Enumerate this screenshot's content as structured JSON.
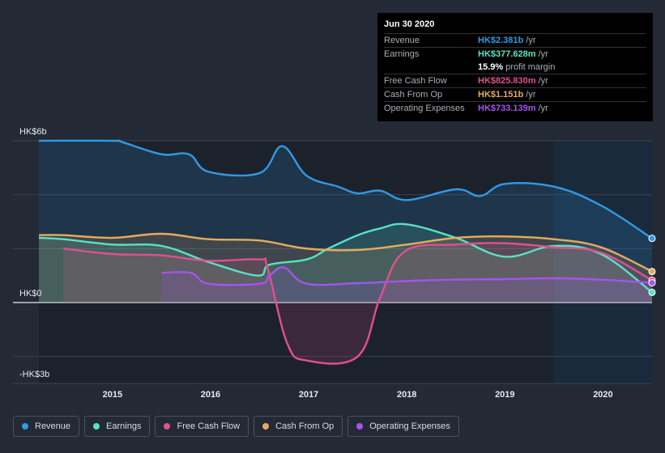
{
  "tooltip": {
    "date": "Jun 30 2020",
    "rows": [
      {
        "label": "Revenue",
        "value": "HK$2.381b",
        "unit": "/yr",
        "color": "#2f9ae8"
      },
      {
        "label": "Earnings",
        "value": "HK$377.628m",
        "unit": "/yr",
        "color": "#57e3c4"
      },
      {
        "label": "",
        "value": "15.9%",
        "unit": "profit margin",
        "color": "#ffffff"
      },
      {
        "label": "Free Cash Flow",
        "value": "HK$825.830m",
        "unit": "/yr",
        "color": "#e0508f"
      },
      {
        "label": "Cash From Op",
        "value": "HK$1.151b",
        "unit": "/yr",
        "color": "#e8ab5c"
      },
      {
        "label": "Operating Expenses",
        "value": "HK$733.139m",
        "unit": "/yr",
        "color": "#a454f0"
      }
    ]
  },
  "chart_data": {
    "type": "area",
    "ylim": [
      -3,
      6
    ],
    "xlim": [
      2014.25,
      2020.5
    ],
    "y_tick_labels": [
      {
        "value": 6,
        "label": "HK$6b"
      },
      {
        "value": 0,
        "label": "HK$0"
      },
      {
        "value": -3,
        "label": "-HK$3b"
      }
    ],
    "x_tick_labels": [
      {
        "value": 2015,
        "label": "2015"
      },
      {
        "value": 2016,
        "label": "2016"
      },
      {
        "value": 2017,
        "label": "2017"
      },
      {
        "value": 2018,
        "label": "2018"
      },
      {
        "value": 2019,
        "label": "2019"
      },
      {
        "value": 2020,
        "label": "2020"
      }
    ],
    "forecast_start": 2019.5,
    "series": [
      {
        "name": "Revenue",
        "color": "#2f9ae8",
        "x": [
          2014.25,
          2015.0,
          2015.1,
          2015.5,
          2015.78,
          2015.98,
          2016.5,
          2016.73,
          2016.98,
          2017.3,
          2017.5,
          2017.73,
          2018.0,
          2018.5,
          2018.75,
          2019.0,
          2019.5,
          2019.98,
          2020.5
        ],
        "y": [
          6.0,
          6.0,
          5.95,
          5.5,
          5.5,
          4.85,
          4.8,
          5.8,
          4.7,
          4.3,
          4.05,
          4.15,
          3.8,
          4.2,
          3.95,
          4.4,
          4.3,
          3.6,
          2.38
        ]
      },
      {
        "name": "Earnings",
        "color": "#57e3c4",
        "x": [
          2014.25,
          2014.5,
          2015.0,
          2015.5,
          2015.98,
          2016.48,
          2016.6,
          2016.98,
          2017.2,
          2017.5,
          2017.73,
          2018.0,
          2018.5,
          2019.0,
          2019.5,
          2019.98,
          2020.5
        ],
        "y": [
          2.4,
          2.35,
          2.15,
          2.1,
          1.5,
          1.0,
          1.4,
          1.6,
          2.0,
          2.5,
          2.75,
          2.9,
          2.4,
          1.7,
          2.1,
          1.8,
          0.378
        ]
      },
      {
        "name": "Free Cash Flow",
        "color": "#e0508f",
        "x": [
          2014.5,
          2015.0,
          2015.5,
          2015.98,
          2016.5,
          2016.58,
          2016.78,
          2016.98,
          2017.5,
          2017.73,
          2017.98,
          2018.5,
          2019.0,
          2019.5,
          2019.98,
          2020.5
        ],
        "y": [
          2.0,
          1.8,
          1.75,
          1.55,
          1.6,
          1.3,
          -1.5,
          -2.15,
          -2.0,
          0.2,
          1.9,
          2.15,
          2.2,
          2.05,
          1.85,
          0.826
        ]
      },
      {
        "name": "Cash From Op",
        "color": "#e8ab5c",
        "x": [
          2014.25,
          2014.5,
          2015.0,
          2015.5,
          2015.98,
          2016.5,
          2016.98,
          2017.5,
          2018.0,
          2018.5,
          2019.0,
          2019.5,
          2019.98,
          2020.5
        ],
        "y": [
          2.5,
          2.5,
          2.4,
          2.55,
          2.35,
          2.3,
          2.0,
          1.95,
          2.15,
          2.4,
          2.45,
          2.35,
          2.05,
          1.151
        ]
      },
      {
        "name": "Operating Expenses",
        "color": "#a454f0",
        "x": [
          2015.5,
          2015.8,
          2015.98,
          2016.5,
          2016.6,
          2016.75,
          2016.98,
          2017.5,
          2018.0,
          2018.5,
          2019.0,
          2019.5,
          2019.98,
          2020.5
        ],
        "y": [
          1.1,
          1.1,
          0.7,
          0.7,
          1.0,
          1.3,
          0.7,
          0.72,
          0.8,
          0.85,
          0.87,
          0.9,
          0.85,
          0.733
        ]
      }
    ]
  },
  "legend": {
    "items": [
      {
        "label": "Revenue",
        "color": "#2f9ae8"
      },
      {
        "label": "Earnings",
        "color": "#57e3c4"
      },
      {
        "label": "Free Cash Flow",
        "color": "#e0508f"
      },
      {
        "label": "Cash From Op",
        "color": "#e8ab5c"
      },
      {
        "label": "Operating Expenses",
        "color": "#a454f0"
      }
    ]
  }
}
